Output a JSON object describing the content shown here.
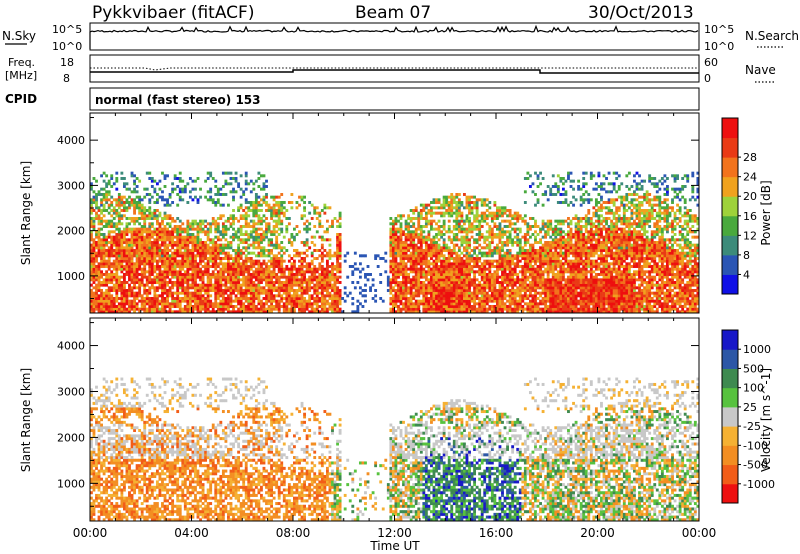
{
  "header": {
    "station": "Pykkvibaer (fitACF)",
    "beam": "Beam 07",
    "date": "30/Oct/2013"
  },
  "status_panels": {
    "nsky": {
      "label": "N.Sky",
      "ticks": [
        "10^5",
        "10^0"
      ]
    },
    "nsearch": {
      "label": "N.Search",
      "ticks": [
        "10^5",
        "10^0"
      ]
    },
    "freq": {
      "label_line1": "Freq.",
      "label_line2": "[MHz]",
      "ticks": [
        "18",
        "8"
      ]
    },
    "nave": {
      "label": "Nave",
      "ticks": [
        "60",
        "0"
      ]
    },
    "cpid": {
      "label": "CPID",
      "text": "normal (fast stereo) 153"
    }
  },
  "colors": {
    "power": [
      "#1010e6",
      "#2a55b4",
      "#3c8b7a",
      "#49a93d",
      "#9ed23a",
      "#f0a21e",
      "#f2731c",
      "#e93a15",
      "#ee0f0f"
    ],
    "velocity": [
      "#ee1010",
      "#f25d18",
      "#f38e22",
      "#f5b133",
      "#c8c8c8",
      "#57c23e",
      "#3e8a50",
      "#2c57a6",
      "#1818c8"
    ]
  },
  "chart_data": [
    {
      "type": "heatmap",
      "title": "Power",
      "ylabel": "Slant Range [km]",
      "xlabel": "Time UT",
      "x_ticks": [
        "00:00",
        "04:00",
        "08:00",
        "12:00",
        "16:00",
        "20:00",
        "00:00"
      ],
      "y_ticks": [
        "1000",
        "2000",
        "3000",
        "4000"
      ],
      "ylim": [
        180,
        4600
      ],
      "colorbar": {
        "label": "Power [dB]",
        "ticks": [
          "4",
          "8",
          "12",
          "16",
          "20",
          "24",
          "28"
        ]
      }
    },
    {
      "type": "heatmap",
      "title": "Velocity",
      "ylabel": "Slant Range [km]",
      "xlabel": "Time UT",
      "x_ticks": [
        "00:00",
        "04:00",
        "08:00",
        "12:00",
        "16:00",
        "20:00",
        "00:00"
      ],
      "y_ticks": [
        "1000",
        "2000",
        "3000",
        "4000"
      ],
      "ylim": [
        180,
        4600
      ],
      "colorbar": {
        "label": "Velocity [m s^-1]",
        "ticks": [
          "1000",
          "500",
          "100",
          "25",
          "-25",
          "-100",
          "-500",
          "-1000"
        ]
      }
    }
  ]
}
